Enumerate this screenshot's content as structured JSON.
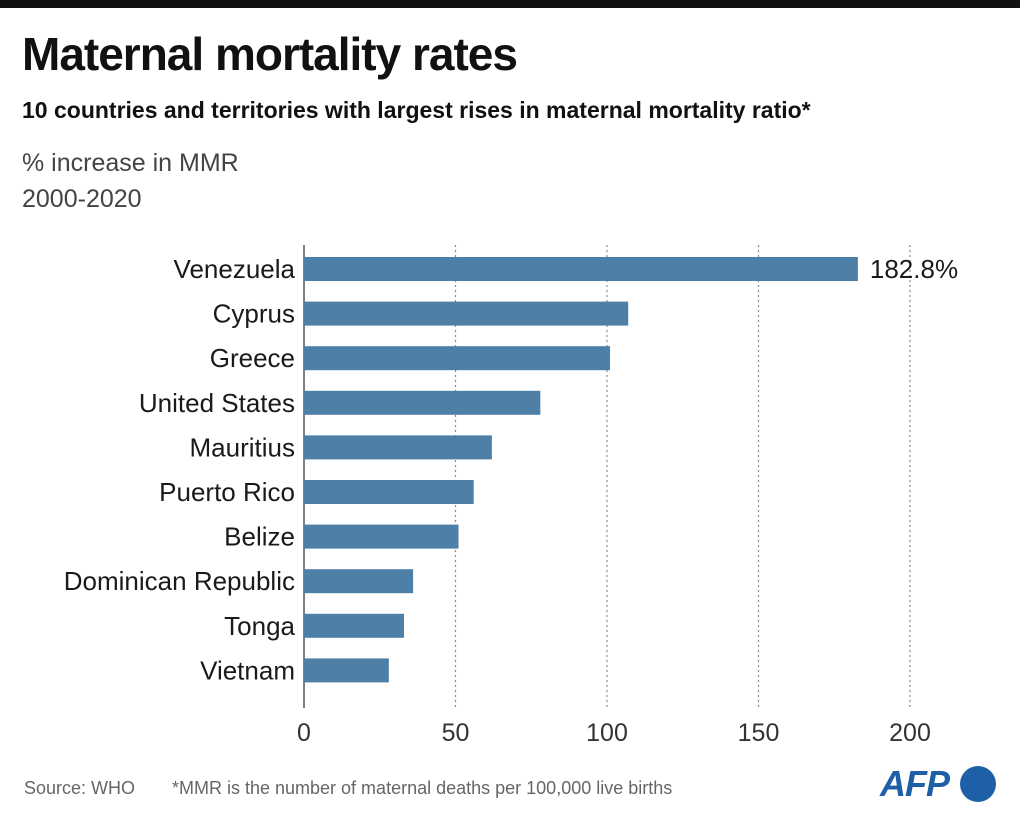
{
  "header": {
    "title": "Maternal mortality rates",
    "subtitle": "10 countries and territories with largest rises in maternal mortality ratio*",
    "unit_label": "% increase in MMR",
    "period_label": "2000-2020"
  },
  "footer": {
    "source": "Source: WHO",
    "note": "*MMR is the number of maternal deaths per 100,000 live births",
    "logo": "AFP"
  },
  "colors": {
    "bar": "#4e7fa6",
    "topbar": "#111111",
    "logo": "#1f5fa8"
  },
  "chart_data": {
    "type": "bar",
    "orientation": "horizontal",
    "categories": [
      "Venezuela",
      "Cyprus",
      "Greece",
      "United States",
      "Mauritius",
      "Puerto Rico",
      "Belize",
      "Dominican Republic",
      "Tonga",
      "Vietnam"
    ],
    "values": [
      182.8,
      107,
      101,
      78,
      62,
      56,
      51,
      36,
      33,
      28
    ],
    "data_labels": [
      "182.8%",
      "",
      "",
      "",
      "",
      "",
      "",
      "",
      "",
      ""
    ],
    "xlim": [
      0,
      200
    ],
    "xticks": [
      0,
      50,
      100,
      150,
      200
    ],
    "grid": "vertical dotted"
  }
}
